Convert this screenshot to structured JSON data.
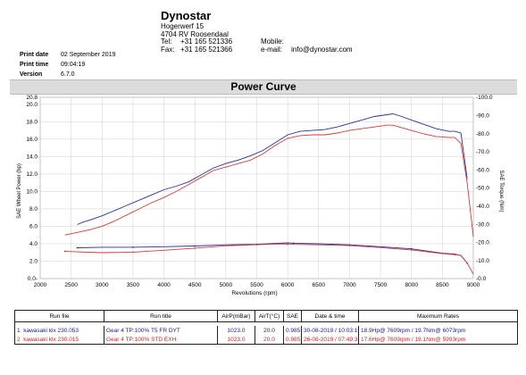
{
  "header": {
    "company": "Dynostar",
    "address1": "Hogerwerf 15",
    "address2": "4704 RV Roosendaal",
    "tel_label": "Tel:",
    "tel": "+31 165 521336",
    "fax_label": "Fax:",
    "fax": "+31 165 521366",
    "mobile_label": "Mobile:",
    "email_label": "e-mail:",
    "email": "info@dynostar.com"
  },
  "meta": {
    "print_date_label": "Print date",
    "print_date": "02 September 2019",
    "print_time_label": "Print time",
    "print_time": "09:04:19",
    "version_label": "Version",
    "version": "6.7.0"
  },
  "chart_data": {
    "type": "line",
    "title": "Power Curve",
    "xlabel": "Revolutions (rpm)",
    "ylabel": "SAE Wheel Power (hp)",
    "ylabel_right": "SAE Torque (Nm)",
    "xlim": [
      2000,
      9000
    ],
    "ylim": [
      0,
      20.8
    ],
    "ylim_right": [
      0,
      100
    ],
    "x_ticks": [
      2000,
      2500,
      3000,
      3500,
      4000,
      4500,
      5000,
      5500,
      6000,
      6500,
      7000,
      7500,
      8000,
      8500,
      9000
    ],
    "y_ticks": [
      "0.0-",
      "2.0",
      "4.0",
      "6.0",
      "8.0",
      "10.0",
      "12.0",
      "14.0",
      "16.0",
      "18.0",
      "20.0",
      "20.8"
    ],
    "y_ticks_right": [
      "-0.0",
      "-10.0",
      "-20.0",
      "-30.0",
      "-40.0",
      "-50.0",
      "-60.0",
      "-70.0",
      "-80.0",
      "-90.0",
      "-100.0"
    ],
    "grid": true,
    "colors": {
      "run1": "#2b2f9b",
      "run2": "#d33b3b"
    },
    "series": [
      {
        "run": 1,
        "axis": "left",
        "kind": "power",
        "x": [
          2600,
          2700,
          2800,
          3000,
          3200,
          3400,
          3600,
          3800,
          4000,
          4200,
          4400,
          4600,
          4800,
          5000,
          5200,
          5400,
          5600,
          5800,
          6000,
          6200,
          6400,
          6600,
          6800,
          7000,
          7200,
          7400,
          7600,
          7700,
          7800,
          8000,
          8200,
          8400,
          8600,
          8700,
          8800,
          8900
        ],
        "values": [
          6.2,
          6.5,
          6.7,
          7.2,
          7.8,
          8.4,
          9.0,
          9.6,
          10.2,
          10.6,
          11.1,
          11.9,
          12.7,
          13.2,
          13.6,
          14.1,
          14.7,
          15.6,
          16.5,
          16.9,
          17.0,
          17.1,
          17.4,
          17.8,
          18.2,
          18.6,
          18.8,
          18.9,
          18.7,
          18.2,
          17.7,
          17.2,
          16.9,
          16.9,
          16.7,
          11.5
        ]
      },
      {
        "run": 2,
        "axis": "left",
        "kind": "power",
        "x": [
          2400,
          2600,
          2800,
          3000,
          3200,
          3400,
          3600,
          3800,
          4000,
          4200,
          4400,
          4600,
          4800,
          5000,
          5200,
          5400,
          5600,
          5800,
          6000,
          6200,
          6400,
          6600,
          6800,
          7000,
          7200,
          7400,
          7600,
          7700,
          7800,
          8000,
          8200,
          8400,
          8600,
          8700,
          8800,
          8900,
          9000
        ],
        "values": [
          5.0,
          5.3,
          5.6,
          6.0,
          6.6,
          7.3,
          8.0,
          8.7,
          9.3,
          10.0,
          10.8,
          11.6,
          12.4,
          12.8,
          13.2,
          13.6,
          14.3,
          15.3,
          16.1,
          16.4,
          16.5,
          16.5,
          16.7,
          17.0,
          17.2,
          17.4,
          17.6,
          17.6,
          17.4,
          17.0,
          16.6,
          16.3,
          16.2,
          16.2,
          15.5,
          11.0,
          4.8
        ]
      },
      {
        "run": 1,
        "axis": "right",
        "kind": "torque",
        "x": [
          2600,
          3000,
          3500,
          4000,
          4500,
          5000,
          5500,
          6000,
          6100,
          6500,
          7000,
          7500,
          8000,
          8500,
          8700,
          8800,
          8900
        ],
        "values": [
          17.0,
          17.3,
          17.3,
          17.6,
          18.0,
          18.6,
          18.9,
          19.7,
          19.5,
          19.2,
          18.6,
          17.6,
          16.4,
          14.0,
          13.5,
          12.7,
          8.5
        ]
      },
      {
        "run": 2,
        "axis": "right",
        "kind": "torque",
        "x": [
          2400,
          3000,
          3500,
          4000,
          4500,
          5000,
          5500,
          5900,
          6000,
          6500,
          7000,
          7500,
          8000,
          8500,
          8700,
          8800,
          8900,
          9000
        ],
        "values": [
          15.0,
          14.3,
          14.6,
          15.6,
          16.8,
          18.1,
          18.7,
          19.1,
          18.9,
          18.6,
          18.2,
          17.1,
          15.8,
          13.8,
          13.2,
          12.8,
          8.5,
          2.5
        ]
      }
    ]
  },
  "table": {
    "headers": [
      "Run file",
      "Run title",
      "AirP(mBar)",
      "AirT(°C)",
      "SAE",
      "Date & time",
      "Maximum Rates"
    ],
    "rows": [
      {
        "num": "1",
        "file": "kawasaki klx 230.053",
        "title": "Gear 4 TP:100% T5 FR DYT",
        "airp": "1023.0",
        "airt": "20.0",
        "sae": "0.985",
        "datetime": "30-08-2019 / 10:03:19",
        "max": "18.9Hp@ 7609rpm / 19.7Nm@ 6073rpm"
      },
      {
        "num": "2",
        "file": "kawasaki klx 230.015",
        "title": "Gear 4 TP:100% STD EXH",
        "airp": "1023.0",
        "airt": "20.0",
        "sae": "0.985",
        "datetime": "26-08-2019 / 07:49:34",
        "max": "17.6Hp@ 7609rpm / 19.1Nm@ 5993rpm"
      }
    ]
  }
}
